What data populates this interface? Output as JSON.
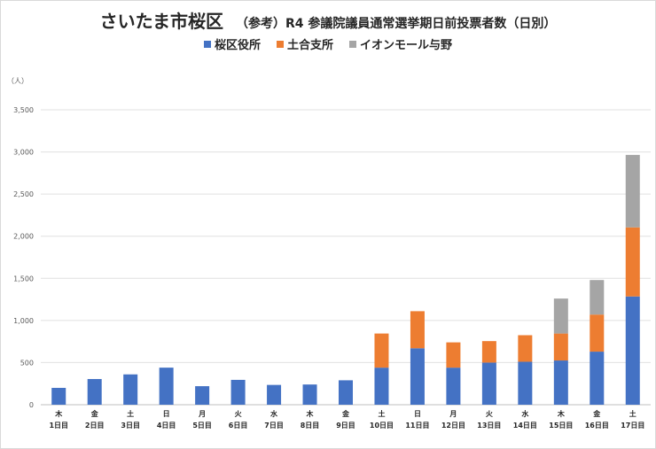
{
  "title": {
    "main": "さいたま市桜区",
    "sub": "（参考）R4 参議院議員通常選挙期日前投票者数（日別）"
  },
  "unit_label": "（人）",
  "chart_data": {
    "type": "bar",
    "stacked": true,
    "categories": [
      {
        "dow": "木",
        "day": "1日目"
      },
      {
        "dow": "金",
        "day": "2日目"
      },
      {
        "dow": "土",
        "day": "3日目"
      },
      {
        "dow": "日",
        "day": "4日目"
      },
      {
        "dow": "月",
        "day": "5日目"
      },
      {
        "dow": "火",
        "day": "6日目"
      },
      {
        "dow": "水",
        "day": "7日目"
      },
      {
        "dow": "木",
        "day": "8日目"
      },
      {
        "dow": "金",
        "day": "9日目"
      },
      {
        "dow": "土",
        "day": "10日目"
      },
      {
        "dow": "日",
        "day": "11日目"
      },
      {
        "dow": "月",
        "day": "12日目"
      },
      {
        "dow": "火",
        "day": "13日目"
      },
      {
        "dow": "水",
        "day": "14日目"
      },
      {
        "dow": "木",
        "day": "15日目"
      },
      {
        "dow": "金",
        "day": "16日目"
      },
      {
        "dow": "土",
        "day": "17日目"
      }
    ],
    "series": [
      {
        "name": "桜区役所",
        "color": "#4472c4",
        "values": [
          200,
          305,
          360,
          440,
          220,
          295,
          235,
          240,
          290,
          440,
          670,
          440,
          500,
          510,
          525,
          630,
          1285
        ]
      },
      {
        "name": "土合支所",
        "color": "#ed7d31",
        "values": [
          0,
          0,
          0,
          0,
          0,
          0,
          0,
          0,
          0,
          405,
          440,
          300,
          255,
          315,
          320,
          440,
          820
        ]
      },
      {
        "name": "イオンモール与野",
        "color": "#a5a5a5",
        "values": [
          0,
          0,
          0,
          0,
          0,
          0,
          0,
          0,
          0,
          0,
          0,
          0,
          0,
          0,
          415,
          410,
          860
        ]
      }
    ],
    "ylim": [
      0,
      3500
    ],
    "yticks": [
      0,
      500,
      1000,
      1500,
      2000,
      2500,
      3000,
      3500
    ],
    "ytick_labels": [
      "0",
      "500",
      "1,000",
      "1,500",
      "2,000",
      "2,500",
      "3,000",
      "3,500"
    ],
    "grid": true,
    "legend": "top"
  }
}
